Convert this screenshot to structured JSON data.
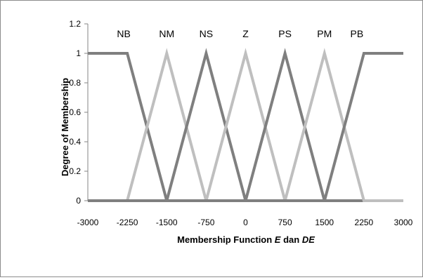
{
  "chart_data": {
    "type": "line",
    "title": "",
    "xlabel_parts": [
      "Membership Function ",
      "E",
      " dan ",
      "DE"
    ],
    "ylabel": "Degree of Membership",
    "xlim": [
      -3000,
      3000
    ],
    "ylim": [
      0,
      1.2
    ],
    "x_ticks": [
      -3000,
      -2250,
      -1500,
      -750,
      0,
      750,
      1500,
      2250,
      3000
    ],
    "x_tick_labels": [
      "-3000",
      "-2250",
      "-1500",
      "-750",
      "0",
      "750",
      "1500",
      "2250",
      "3000"
    ],
    "y_ticks": [
      0,
      0.2,
      0.4,
      0.6,
      0.8,
      1,
      1.2
    ],
    "y_tick_labels": [
      "0",
      "0.2",
      "0.4",
      "0.6",
      "0.8",
      "1",
      "1.2"
    ],
    "grid": false,
    "legend": "none",
    "set_labels": [
      "NB",
      "NM",
      "NS",
      "Z",
      "PS",
      "PM",
      "PB"
    ],
    "series": [
      {
        "name": "NB",
        "color": "#7f7f7f",
        "x": [
          -3000,
          -2250,
          -1500,
          3000
        ],
        "y": [
          1,
          1,
          0,
          0
        ]
      },
      {
        "name": "NM",
        "color": "#bfbfbf",
        "x": [
          -3000,
          -2250,
          -1500,
          -750,
          3000
        ],
        "y": [
          0,
          0,
          1,
          0,
          0
        ]
      },
      {
        "name": "NS",
        "color": "#7f7f7f",
        "x": [
          -3000,
          -1500,
          -750,
          0,
          3000
        ],
        "y": [
          0,
          0,
          1,
          0,
          0
        ]
      },
      {
        "name": "Z",
        "color": "#bfbfbf",
        "x": [
          -3000,
          -750,
          0,
          750,
          3000
        ],
        "y": [
          0,
          0,
          1,
          0,
          0
        ]
      },
      {
        "name": "PS",
        "color": "#7f7f7f",
        "x": [
          -3000,
          0,
          750,
          1500,
          3000
        ],
        "y": [
          0,
          0,
          1,
          0,
          0
        ]
      },
      {
        "name": "PM",
        "color": "#bfbfbf",
        "x": [
          -3000,
          750,
          1500,
          2250,
          3000
        ],
        "y": [
          0,
          0,
          1,
          0,
          0
        ]
      },
      {
        "name": "PB",
        "color": "#7f7f7f",
        "x": [
          -3000,
          1500,
          2250,
          3000
        ],
        "y": [
          0,
          0,
          1,
          1
        ]
      }
    ]
  }
}
